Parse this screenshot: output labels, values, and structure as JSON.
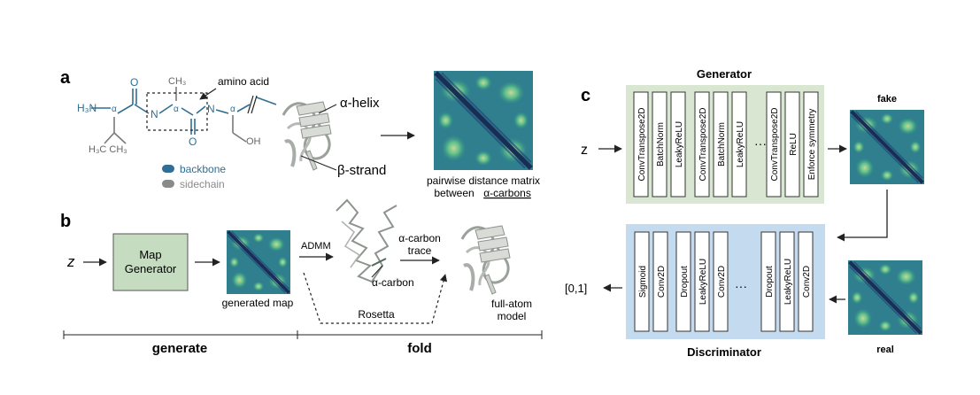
{
  "panel_a": {
    "letter": "a",
    "chem": {
      "h3n": "H₃N",
      "alpha": "α",
      "o": "O",
      "n": "N",
      "ch3": "CH₃",
      "h3c_ch3": "H₃C   CH₃",
      "oh": "OH"
    },
    "amino_acid_label": "amino acid",
    "helix_label": "α-helix",
    "strand_label": "β-strand",
    "legend": [
      {
        "label": "backbone",
        "color": "#2f6f93"
      },
      {
        "label": "sidechain",
        "color": "#8a8a8a"
      }
    ],
    "matrix_caption_line1": "pairwise distance matrix",
    "matrix_caption_line2_prefix": "between ",
    "matrix_caption_line2_underlined": "α-carbons"
  },
  "panel_b": {
    "letter": "b",
    "z": "z",
    "map_generator_line1": "Map",
    "map_generator_line2": "Generator",
    "generated_map": "generated map",
    "admm": "ADMM",
    "alpha_carbon": "α-carbon",
    "trace_line1": "α-carbon",
    "trace_line2": "trace",
    "rosetta": "Rosetta",
    "full_atom_line1": "full-atom",
    "full_atom_line2": "model",
    "generate": "generate",
    "fold": "fold"
  },
  "panel_c": {
    "letter": "c",
    "generator_title": "Generator",
    "z": "z",
    "generator_blocks": [
      [
        "ConvTranspose2D",
        "BatchNorm",
        "LeakyReLU"
      ],
      [
        "ConvTranspose2D",
        "BatchNorm",
        "LeakyReLU"
      ],
      [
        "ConvTranspose2D",
        "ReLU",
        "Enforce symmetry"
      ]
    ],
    "ellipsis": "···",
    "fake": "fake",
    "real": "real",
    "discriminator_title": "Discriminator",
    "discriminator_blocks": [
      [
        "Sigmoid",
        "Conv2D"
      ],
      [
        "Dropout",
        "LeakyReLU",
        "Conv2D"
      ],
      [
        "Dropout",
        "LeakyReLU",
        "Conv2D"
      ]
    ],
    "output": "[0,1]"
  },
  "colors": {
    "backbone": "#2f6f93",
    "generator_bg": "#d9e7d2",
    "discriminator_bg": "#c4dbef",
    "map_generator_bg": "#c6dcc1"
  }
}
